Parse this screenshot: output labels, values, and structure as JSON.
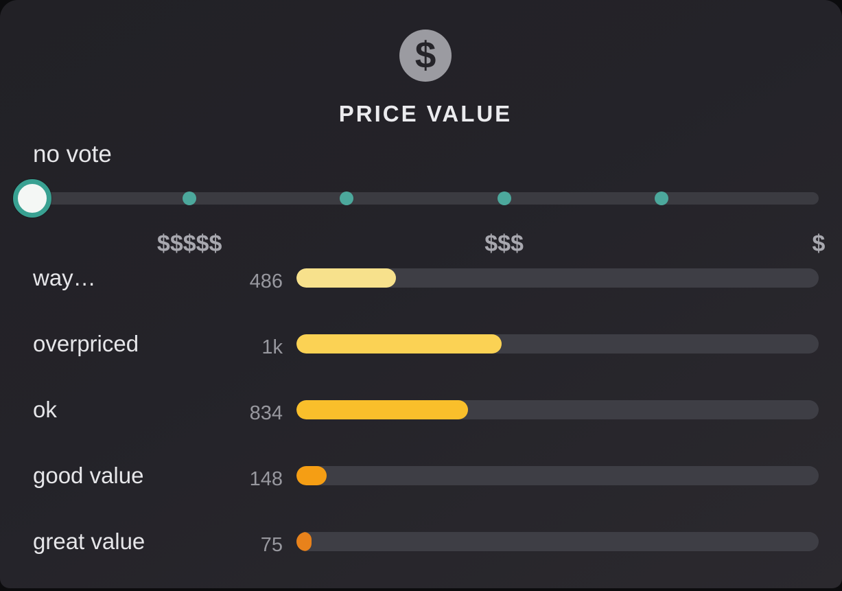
{
  "header": {
    "icon_glyph": "$",
    "title": "PRICE VALUE"
  },
  "slider": {
    "selected_label": "no vote",
    "dot_positions_pct": [
      20,
      40,
      60,
      80
    ],
    "tier_labels": [
      {
        "text": "$$$$$",
        "position_pct": 20
      },
      {
        "text": "$$$",
        "position_pct": 60
      },
      {
        "text": "$",
        "position_pct": 100
      }
    ],
    "colors": {
      "track": "#3b3b41",
      "dot": "#4ca89c",
      "handle_fill": "#f4f7f5",
      "handle_ring": "#39a192"
    }
  },
  "chart_data": {
    "type": "bar",
    "orientation": "horizontal",
    "title": "PRICE VALUE",
    "categories": [
      "way…",
      "overpriced",
      "ok",
      "good value",
      "great value"
    ],
    "values": [
      486,
      1000,
      834,
      148,
      75
    ],
    "value_labels": [
      "486",
      "1k",
      "834",
      "148",
      "75"
    ],
    "bar_colors": [
      "#f7e18c",
      "#fbd254",
      "#f9bf2b",
      "#f59e14",
      "#e8821b"
    ],
    "track_color": "#3e3e45",
    "scale": "fraction-of-total",
    "xlabel": "",
    "ylabel": ""
  },
  "theme": {
    "card_background": "#242329",
    "page_background": "#0c0c0e",
    "title_color": "#ebebee",
    "label_color": "#e6e6e9",
    "count_color": "#98989f",
    "tier_label_color": "#a8a8af",
    "icon_circle_color": "#9b9ba1"
  }
}
